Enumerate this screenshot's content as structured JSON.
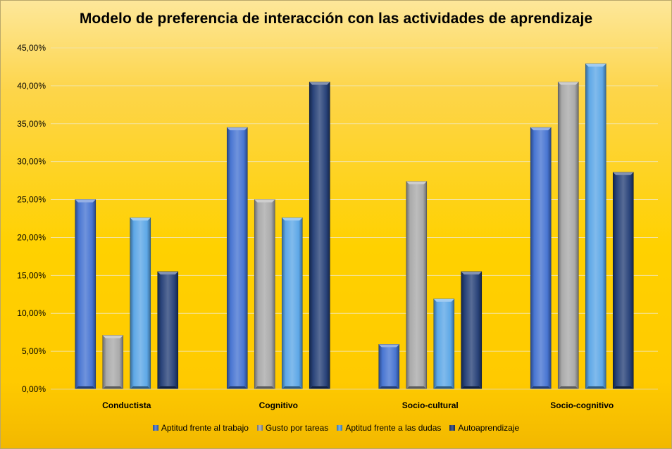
{
  "chart_data": {
    "type": "bar",
    "title": "Modelo de preferencia de interacción con las actividades de aprendizaje",
    "xlabel": "",
    "ylabel": "",
    "categories": [
      "Conductista",
      "Cognitivo",
      "Socio-cultural",
      "Socio-cognitivo"
    ],
    "series": [
      {
        "name": "Aptitud frente al trabajo",
        "values": [
          25.0,
          34.5,
          5.9,
          34.5
        ],
        "color": "#3f6fd0"
      },
      {
        "name": "Gusto por tareas",
        "values": [
          7.1,
          25.0,
          27.4,
          40.5
        ],
        "color": "#a6a6a6"
      },
      {
        "name": "Aptitud frente a las dudas",
        "values": [
          22.6,
          22.6,
          11.9,
          42.9
        ],
        "color": "#56a3e6"
      },
      {
        "name": "Autoaprendizaje",
        "values": [
          15.5,
          40.5,
          15.5,
          28.6
        ],
        "color": "#1f3a73"
      }
    ],
    "ylim": [
      0,
      45
    ],
    "yticks": [
      "0,00%",
      "5,00%",
      "10,00%",
      "15,00%",
      "20,00%",
      "25,00%",
      "30,00%",
      "35,00%",
      "40,00%",
      "45,00%"
    ],
    "grid": true,
    "legend_position": "bottom"
  }
}
